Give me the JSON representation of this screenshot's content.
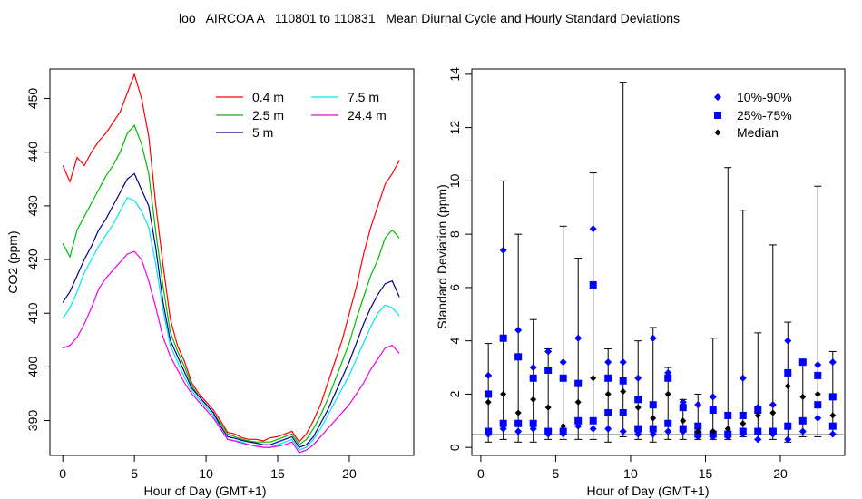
{
  "title": "loo   AIRCOA A   110801 to 110831   Mean Diurnal Cycle and Hourly Standard Deviations",
  "chart_data": [
    {
      "type": "line",
      "xlabel": "Hour of Day (GMT+1)",
      "ylabel": "CO2 (ppm)",
      "xlim": [
        -0.9,
        24.5
      ],
      "ylim": [
        383.5,
        455.5
      ],
      "xticks": [
        0,
        5,
        10,
        15,
        20
      ],
      "yticks": [
        390,
        400,
        410,
        420,
        430,
        440,
        450
      ],
      "grid": false,
      "legend_position": "top-right",
      "x": [
        0,
        0.5,
        1,
        1.5,
        2,
        2.5,
        3,
        3.5,
        4,
        4.5,
        5,
        5.5,
        6,
        6.5,
        7,
        7.5,
        8,
        8.5,
        9,
        9.5,
        10,
        10.5,
        11,
        11.5,
        12,
        12.5,
        13,
        13.5,
        14,
        14.5,
        15,
        15.5,
        16,
        16.5,
        17,
        17.5,
        18,
        18.5,
        19,
        19.5,
        20,
        20.5,
        21,
        21.5,
        22,
        22.5,
        23,
        23.5
      ],
      "series": [
        {
          "name": "0.4 m",
          "color": "#ff0000",
          "values": [
            437.5,
            434.5,
            439,
            437.5,
            440,
            442,
            443.5,
            445.5,
            447.5,
            451,
            454.5,
            450,
            443,
            430,
            419,
            409,
            404,
            401,
            397,
            395,
            393.5,
            392,
            390,
            387.8,
            387.5,
            386.8,
            386.5,
            386.5,
            386.2,
            386.8,
            387,
            387.5,
            388,
            386,
            387.5,
            390,
            393,
            397,
            401,
            405,
            410,
            415,
            421,
            426,
            430,
            434,
            436,
            438.5
          ]
        },
        {
          "name": "2.5 m",
          "color": "#00bb00",
          "values": [
            423,
            420.5,
            425.5,
            428,
            430.5,
            433,
            435.5,
            437.5,
            440,
            443.5,
            445,
            441.5,
            436,
            425,
            415,
            406.5,
            403,
            400,
            396.5,
            394.5,
            393,
            391.5,
            389.5,
            387.5,
            387,
            386.5,
            386.2,
            386,
            386,
            386,
            386.5,
            387,
            387.5,
            385.5,
            386.5,
            388.5,
            391,
            394,
            397.5,
            401,
            404.5,
            409,
            413,
            417,
            420,
            424,
            425.5,
            424
          ]
        },
        {
          "name": "5 m",
          "color": "#00008b",
          "values": [
            412,
            414,
            417,
            420,
            422.5,
            425.5,
            427.5,
            430,
            432.5,
            435,
            436,
            433,
            430,
            422,
            412,
            405,
            402,
            399,
            396,
            394.5,
            393,
            391.5,
            389,
            387,
            386.7,
            386.3,
            386,
            385.8,
            385.5,
            385.5,
            386,
            386.5,
            387,
            385,
            385.5,
            387,
            389.5,
            392,
            395,
            398,
            401,
            404.5,
            408,
            411,
            413.5,
            415.5,
            416,
            413
          ]
        },
        {
          "name": "7.5 m",
          "color": "#00e5ee",
          "values": [
            409,
            411,
            414,
            417.5,
            420,
            422.5,
            424.5,
            426.5,
            429,
            431.5,
            431,
            429,
            426,
            419,
            410.5,
            404,
            401,
            398,
            395.5,
            394,
            392.5,
            391,
            388.5,
            386.5,
            386.2,
            386,
            385.5,
            385.3,
            385,
            385,
            385.5,
            386,
            386.5,
            384.5,
            385,
            386.5,
            388.5,
            391,
            393.5,
            396,
            398.5,
            401.5,
            404.5,
            407.5,
            410,
            411.5,
            411,
            409.5
          ]
        },
        {
          "name": "24.4 m",
          "color": "#ee00ee",
          "values": [
            403.5,
            404,
            405.5,
            408,
            411,
            414.5,
            416.5,
            418,
            419.5,
            421,
            421.5,
            420,
            416,
            411,
            405.5,
            402,
            399.5,
            397,
            395,
            393.5,
            392,
            390.5,
            388.5,
            386.5,
            386.2,
            385.8,
            385.5,
            385.2,
            385,
            385,
            385.2,
            385.5,
            386,
            384,
            384.5,
            385.5,
            387,
            388.5,
            390,
            391.5,
            393,
            395,
            397,
            399.5,
            401.5,
            403.5,
            404,
            402.5
          ]
        }
      ]
    },
    {
      "type": "scatter",
      "xlabel": "Hour of Day (GMT+1)",
      "ylabel": "Standard Deviation (ppm)",
      "xlim": [
        -0.6,
        24.3
      ],
      "ylim": [
        -0.3,
        14.2
      ],
      "xticks": [
        0,
        5,
        10,
        15,
        20
      ],
      "yticks": [
        0,
        2,
        4,
        6,
        8,
        10,
        12,
        14
      ],
      "grid": false,
      "legend_position": "top-right",
      "reference_line_y": 0.5,
      "x": [
        0.5,
        1.5,
        2.5,
        3.5,
        4.5,
        5.5,
        6.5,
        7.5,
        8.5,
        9.5,
        10.5,
        11.5,
        12.5,
        13.5,
        14.5,
        15.5,
        16.5,
        17.5,
        18.5,
        19.5,
        20.5,
        21.5,
        22.5,
        23.5
      ],
      "whisker_max": [
        3.9,
        10.0,
        8.0,
        4.8,
        3.7,
        8.3,
        7.1,
        10.3,
        3.7,
        13.7,
        4.0,
        4.5,
        3.0,
        1.8,
        2.0,
        4.1,
        10.5,
        8.9,
        4.3,
        7.6,
        4.7,
        3.2,
        9.8,
        3.6
      ],
      "whisker_min": [
        0.2,
        0.3,
        0.2,
        0.2,
        0.3,
        0.3,
        0.3,
        0.3,
        0.2,
        0.4,
        0.3,
        0.2,
        0.3,
        0.3,
        0.3,
        0.3,
        0.3,
        0.4,
        0.3,
        0.3,
        0.2,
        0.4,
        0.4,
        0.5
      ],
      "series": [
        {
          "name": "10%-90%",
          "color": "#0000ff",
          "marker": "diamond",
          "values_low": [
            0.5,
            0.7,
            0.6,
            0.7,
            0.5,
            0.5,
            0.8,
            0.7,
            0.7,
            0.6,
            0.5,
            0.5,
            0.6,
            0.6,
            0.4,
            0.4,
            0.4,
            0.5,
            0.3,
            0.5,
            0.3,
            0.6,
            1.1,
            0.5
          ],
          "values_high": [
            2.7,
            7.4,
            4.4,
            3.0,
            3.6,
            3.2,
            4.1,
            8.2,
            3.2,
            3.2,
            2.6,
            4.1,
            2.8,
            1.7,
            1.6,
            1.9,
            1.2,
            2.6,
            1.5,
            1.6,
            4.0,
            3.2,
            3.1,
            3.2
          ]
        },
        {
          "name": "25%-75%",
          "color": "#0000ff",
          "marker": "square",
          "values_low": [
            0.6,
            0.9,
            0.9,
            0.9,
            0.6,
            0.6,
            1.0,
            1.0,
            1.3,
            1.3,
            0.7,
            0.7,
            0.9,
            0.7,
            0.5,
            0.5,
            0.5,
            0.6,
            0.6,
            0.6,
            0.8,
            1.0,
            1.6,
            0.8
          ],
          "values_high": [
            2.0,
            4.1,
            3.4,
            2.6,
            2.9,
            2.6,
            2.4,
            6.1,
            2.6,
            2.5,
            1.8,
            1.6,
            2.6,
            1.5,
            0.8,
            1.4,
            1.2,
            1.2,
            1.4,
            0.6,
            2.8,
            3.2,
            2.7,
            1.9
          ]
        },
        {
          "name": "Median",
          "color": "#000000",
          "marker": "diamond",
          "values": [
            1.7,
            2.0,
            1.3,
            1.8,
            1.5,
            0.8,
            1.7,
            2.6,
            2.0,
            2.1,
            1.5,
            1.1,
            2.0,
            1.0,
            0.6,
            0.6,
            0.7,
            0.9,
            1.2,
            1.3,
            2.3,
            1.9,
            2.0,
            1.2
          ]
        }
      ]
    }
  ]
}
